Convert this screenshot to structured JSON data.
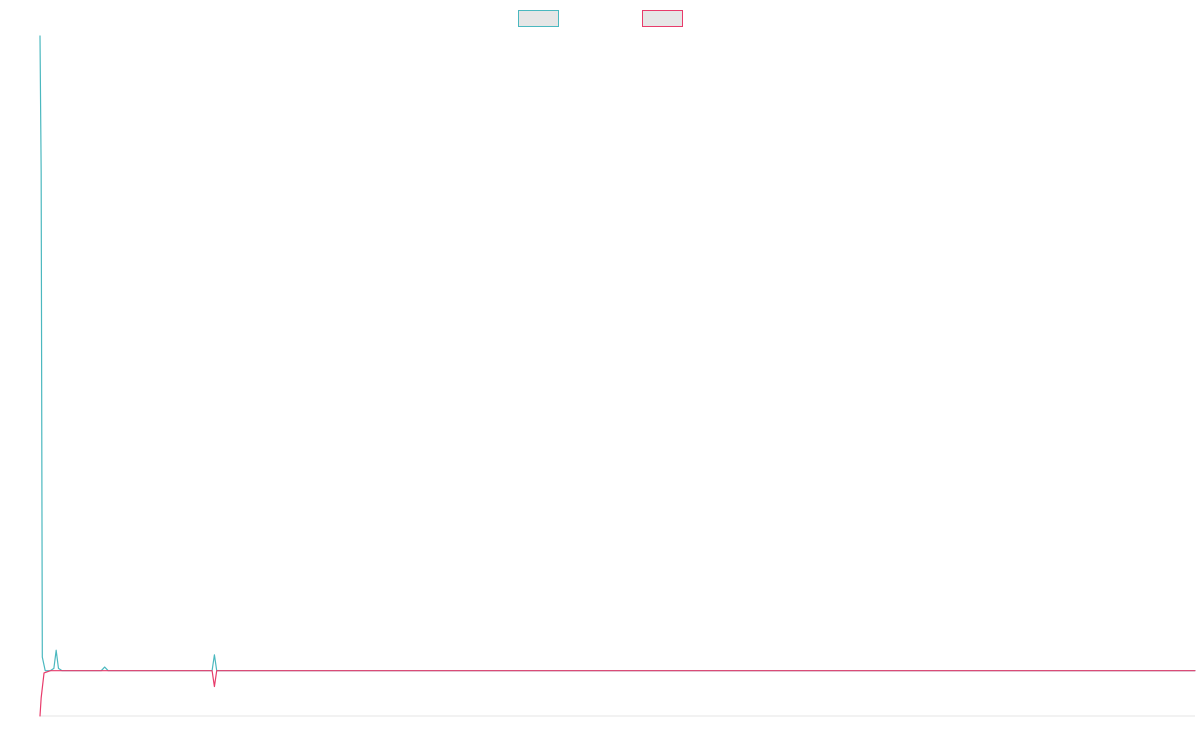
{
  "chart_data": {
    "type": "line",
    "title": "",
    "xlabel": "",
    "ylabel": "",
    "grid": false,
    "legend_position": "top-center",
    "x_range": [
      0,
      100
    ],
    "y_range": [
      -1,
      14
    ],
    "series": [
      {
        "color": "#4bb8bf",
        "fill_color": "#e6e6e6",
        "points": [
          [
            0,
            14
          ],
          [
            0.1,
            11
          ],
          [
            0.2,
            0.3
          ],
          [
            0.45,
            0
          ],
          [
            0.9,
            0
          ],
          [
            1.2,
            0.05
          ],
          [
            1.4,
            0.45
          ],
          [
            1.6,
            0.05
          ],
          [
            1.9,
            0
          ],
          [
            5.3,
            0
          ],
          [
            5.6,
            0.08
          ],
          [
            5.9,
            0
          ],
          [
            14.9,
            0
          ],
          [
            15.1,
            0.35
          ],
          [
            15.3,
            0
          ],
          [
            100,
            0
          ]
        ]
      },
      {
        "color": "#e83b6b",
        "fill_color": "#e6e6e6",
        "points": [
          [
            0,
            -1
          ],
          [
            0.1,
            -0.6
          ],
          [
            0.35,
            -0.05
          ],
          [
            0.9,
            0
          ],
          [
            14.9,
            0
          ],
          [
            15.1,
            -0.35
          ],
          [
            15.3,
            0
          ],
          [
            100,
            0
          ]
        ]
      }
    ]
  }
}
